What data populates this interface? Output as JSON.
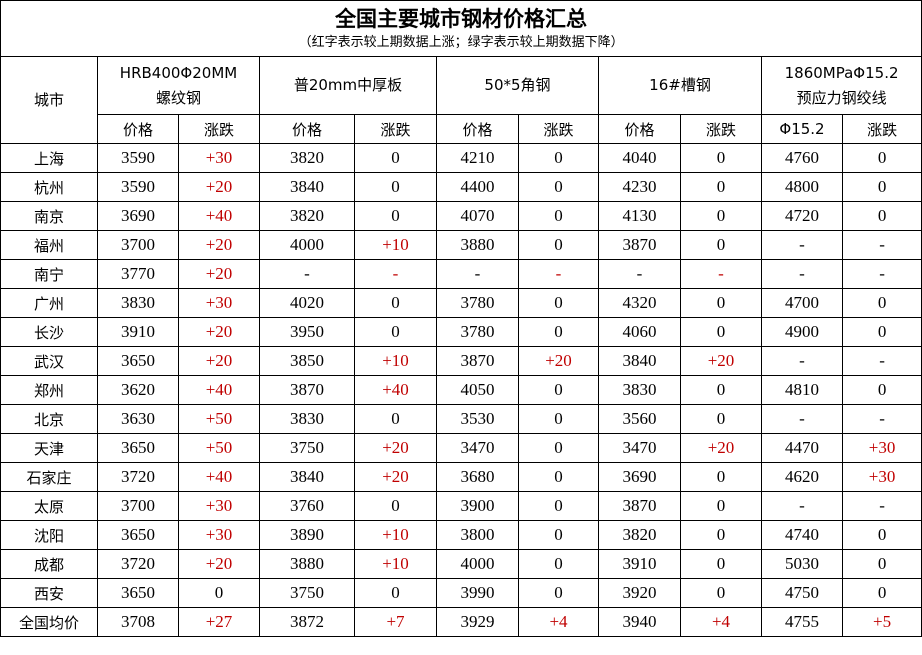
{
  "title": "全国主要城市钢材价格汇总",
  "subtitle": "（红字表示较上期数据上涨；绿字表示较上期数据下降）",
  "colors": {
    "rise": "#c00000",
    "text": "#000000",
    "border": "#000000"
  },
  "header": {
    "city": "城市",
    "products": [
      {
        "line1": "HRB400Φ20MM",
        "line2": "螺纹钢",
        "sub": [
          "价格",
          "涨跌"
        ]
      },
      {
        "line1": "普20mm中厚板",
        "line2": "",
        "sub": [
          "价格",
          "涨跌"
        ]
      },
      {
        "line1": "50*5角钢",
        "line2": "",
        "sub": [
          "价格",
          "涨跌"
        ]
      },
      {
        "line1": "16#槽钢",
        "line2": "",
        "sub": [
          "价格",
          "涨跌"
        ]
      },
      {
        "line1": "1860MPaΦ15.2",
        "line2": "预应力钢绞线",
        "sub": [
          "Φ15.2",
          "涨跌"
        ]
      }
    ]
  },
  "rows": [
    {
      "city": "上海",
      "values": [
        "3590",
        "+30",
        "3820",
        "0",
        "4210",
        "0",
        "4040",
        "0",
        "4760",
        "0"
      ]
    },
    {
      "city": "杭州",
      "values": [
        "3590",
        "+20",
        "3840",
        "0",
        "4400",
        "0",
        "4230",
        "0",
        "4800",
        "0"
      ]
    },
    {
      "city": "南京",
      "values": [
        "3690",
        "+40",
        "3820",
        "0",
        "4070",
        "0",
        "4130",
        "0",
        "4720",
        "0"
      ]
    },
    {
      "city": "福州",
      "values": [
        "3700",
        "+20",
        "4000",
        "+10",
        "3880",
        "0",
        "3870",
        "0",
        "-",
        "-"
      ]
    },
    {
      "city": "南宁",
      "values": [
        "3770",
        "+20",
        "-",
        "-",
        "-",
        "-",
        "-",
        "-",
        "-",
        "-"
      ]
    },
    {
      "city": "广州",
      "values": [
        "3830",
        "+30",
        "4020",
        "0",
        "3780",
        "0",
        "4320",
        "0",
        "4700",
        "0"
      ]
    },
    {
      "city": "长沙",
      "values": [
        "3910",
        "+20",
        "3950",
        "0",
        "3780",
        "0",
        "4060",
        "0",
        "4900",
        "0"
      ]
    },
    {
      "city": "武汉",
      "values": [
        "3650",
        "+20",
        "3850",
        "+10",
        "3870",
        "+20",
        "3840",
        "+20",
        "-",
        "-"
      ]
    },
    {
      "city": "郑州",
      "values": [
        "3620",
        "+40",
        "3870",
        "+40",
        "4050",
        "0",
        "3830",
        "0",
        "4810",
        "0"
      ]
    },
    {
      "city": "北京",
      "values": [
        "3630",
        "+50",
        "3830",
        "0",
        "3530",
        "0",
        "3560",
        "0",
        "-",
        "-"
      ]
    },
    {
      "city": "天津",
      "values": [
        "3650",
        "+50",
        "3750",
        "+20",
        "3470",
        "0",
        "3470",
        "+20",
        "4470",
        "+30"
      ]
    },
    {
      "city": "石家庄",
      "values": [
        "3720",
        "+40",
        "3840",
        "+20",
        "3680",
        "0",
        "3690",
        "0",
        "4620",
        "+30"
      ]
    },
    {
      "city": "太原",
      "values": [
        "3700",
        "+30",
        "3760",
        "0",
        "3900",
        "0",
        "3870",
        "0",
        "-",
        "-"
      ]
    },
    {
      "city": "沈阳",
      "values": [
        "3650",
        "+30",
        "3890",
        "+10",
        "3800",
        "0",
        "3820",
        "0",
        "4740",
        "0"
      ]
    },
    {
      "city": "成都",
      "values": [
        "3720",
        "+20",
        "3880",
        "+10",
        "4000",
        "0",
        "3910",
        "0",
        "5030",
        "0"
      ]
    },
    {
      "city": "西安",
      "values": [
        "3650",
        "0",
        "3750",
        "0",
        "3990",
        "0",
        "3920",
        "0",
        "4750",
        "0"
      ]
    },
    {
      "city": "全国均价",
      "values": [
        "3708",
        "+27",
        "3872",
        "+7",
        "3929",
        "+4",
        "3940",
        "+4",
        "4755",
        "+5"
      ]
    }
  ]
}
